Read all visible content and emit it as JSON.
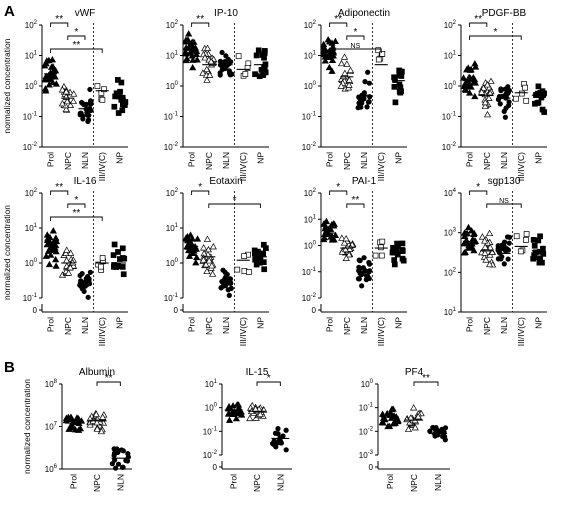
{
  "figure": {
    "panel_labels": [
      "A",
      "B"
    ]
  },
  "chart_data": [
    {
      "type": "scatter",
      "title": "vWF",
      "ylabel": "normalized concentration",
      "categories": [
        "Prol",
        "NPC",
        "NLN",
        "III/IV(C)",
        "NP"
      ],
      "ylim_log10": [
        -2,
        2
      ],
      "ytick_labels": [
        "10^-2",
        "10^-1",
        "10^0",
        "10^1",
        "10^2"
      ],
      "medians": [
        2.5,
        0.4,
        0.18,
        0.7,
        0.4
      ],
      "significance": [
        {
          "from": "Prol",
          "to": "NPC",
          "label": "**"
        },
        {
          "from": "NPC",
          "to": "NLN",
          "label": "*"
        },
        {
          "from": "Prol",
          "to": "III/IV(C)",
          "label": "**"
        }
      ]
    },
    {
      "type": "scatter",
      "title": "IP-10",
      "categories": [
        "Prol",
        "NPC",
        "NLN",
        "III/IV(C)",
        "NP"
      ],
      "ylim_log10": [
        -2,
        2
      ],
      "ytick_labels": [
        "10^-2",
        "10^-1",
        "10^0",
        "10^1",
        "10^2"
      ],
      "medians": [
        15,
        5,
        5,
        3.5,
        5
      ],
      "significance": [
        {
          "from": "Prol",
          "to": "NPC",
          "label": "**"
        }
      ]
    },
    {
      "type": "scatter",
      "title": "Adiponectin",
      "categories": [
        "Prol",
        "NPC",
        "NLN",
        "III/IV(C)",
        "NP"
      ],
      "ylim_log10": [
        -2,
        2
      ],
      "ytick_labels": [
        "10^-2",
        "10^-1",
        "10^0",
        "10^1",
        "10^2"
      ],
      "medians": [
        15,
        2,
        0.5,
        5,
        1.5
      ],
      "significance": [
        {
          "from": "Prol",
          "to": "NPC",
          "label": "**"
        },
        {
          "from": "NPC",
          "to": "NLN",
          "label": "*"
        },
        {
          "from": "Prol",
          "to": "III/IV(C)",
          "label": "NS"
        }
      ]
    },
    {
      "type": "scatter",
      "title": "PDGF-BB",
      "categories": [
        "Prol",
        "NPC",
        "NLN",
        "III/IV(C)",
        "NP"
      ],
      "ylim_log10": [
        -2,
        2
      ],
      "ytick_labels": [
        "10^-2",
        "10^-1",
        "10^0",
        "10^1",
        "10^2"
      ],
      "medians": [
        1.5,
        0.5,
        0.4,
        0.6,
        0.5
      ],
      "significance": [
        {
          "from": "Prol",
          "to": "NPC",
          "label": "**"
        },
        {
          "from": "Prol",
          "to": "III/IV(C)",
          "label": "*"
        }
      ]
    },
    {
      "type": "scatter",
      "title": "IL-16",
      "ylabel": "normalized concentration",
      "categories": [
        "Prol",
        "NPC",
        "NLN",
        "III/IV(C)",
        "NP"
      ],
      "ylim_log10": [
        -1,
        2
      ],
      "ytick_labels": [
        "0",
        "10^-1",
        "10^0",
        "10^1",
        "10^2"
      ],
      "medians": [
        3,
        1,
        0.3,
        1,
        1
      ],
      "significance": [
        {
          "from": "Prol",
          "to": "NPC",
          "label": "**"
        },
        {
          "from": "NPC",
          "to": "NLN",
          "label": "*"
        },
        {
          "from": "Prol",
          "to": "III/IV(C)",
          "label": "**"
        }
      ]
    },
    {
      "type": "scatter",
      "title": "Eotaxin",
      "categories": [
        "Prol",
        "NPC",
        "NLN",
        "III/IV(C)",
        "NP"
      ],
      "ylim_log10": [
        -1,
        2
      ],
      "ytick_labels": [
        "0",
        "10^-1",
        "10^0",
        "10^1",
        "10^2"
      ],
      "medians": [
        3,
        1.5,
        0.3,
        1.2,
        1.5
      ],
      "significance": [
        {
          "from": "Prol",
          "to": "NPC",
          "label": "*"
        },
        {
          "from": "NPC",
          "to": "NP",
          "label": "*"
        }
      ]
    },
    {
      "type": "scatter",
      "title": "PAI-1",
      "categories": [
        "Prol",
        "NPC",
        "NLN",
        "III/IV(C)",
        "NP"
      ],
      "ylim_log10": [
        -2,
        2
      ],
      "ytick_labels": [
        "0",
        "10^-2",
        "10^-1",
        "10^0",
        "10^1",
        "10^2"
      ],
      "medians": [
        3,
        0.8,
        0.12,
        0.8,
        0.5
      ],
      "significance": [
        {
          "from": "Prol",
          "to": "NPC",
          "label": "*"
        },
        {
          "from": "NPC",
          "to": "NLN",
          "label": "**"
        }
      ]
    },
    {
      "type": "scatter",
      "title": "sgp130",
      "categories": [
        "Prol",
        "NPC",
        "NLN",
        "III/IV(C)",
        "NP"
      ],
      "ylim_log10": [
        1,
        4
      ],
      "ytick_labels": [
        "10^1",
        "10^2",
        "10^3",
        "10^4"
      ],
      "medians": [
        600,
        350,
        300,
        450,
        350
      ],
      "significance": [
        {
          "from": "Prol",
          "to": "NPC",
          "label": "*"
        },
        {
          "from": "NPC",
          "to": "III/IV(C)",
          "label": "NS"
        }
      ]
    },
    {
      "type": "scatter",
      "title": "Albumin",
      "ylabel": "normalized concentration",
      "categories": [
        "Prol",
        "NPC",
        "NLN"
      ],
      "ylim_log10": [
        6,
        8
      ],
      "ytick_labels": [
        "10^6",
        "10^7",
        "10^8"
      ],
      "medians": [
        12000000,
        14000000,
        1800000
      ],
      "significance": [
        {
          "from": "NPC",
          "to": "NLN",
          "label": "**"
        }
      ]
    },
    {
      "type": "scatter",
      "title": "IL-15",
      "categories": [
        "Prol",
        "NPC",
        "NLN"
      ],
      "ylim_log10": [
        -2,
        1
      ],
      "ytick_labels": [
        "0",
        "10^-2",
        "10^-1",
        "10^0",
        "10^1"
      ],
      "medians": [
        0.8,
        0.7,
        0.05
      ],
      "significance": [
        {
          "from": "NPC",
          "to": "NLN",
          "label": "*"
        }
      ]
    },
    {
      "type": "scatter",
      "title": "PF4",
      "categories": [
        "Prol",
        "NPC",
        "NLN"
      ],
      "ylim_log10": [
        -3,
        0
      ],
      "ytick_labels": [
        "0",
        "10^-3",
        "10^-2",
        "10^-1",
        "10^0"
      ],
      "medians": [
        0.04,
        0.03,
        0.008
      ],
      "significance": [
        {
          "from": "NPC",
          "to": "NLN",
          "label": "**"
        }
      ]
    }
  ]
}
